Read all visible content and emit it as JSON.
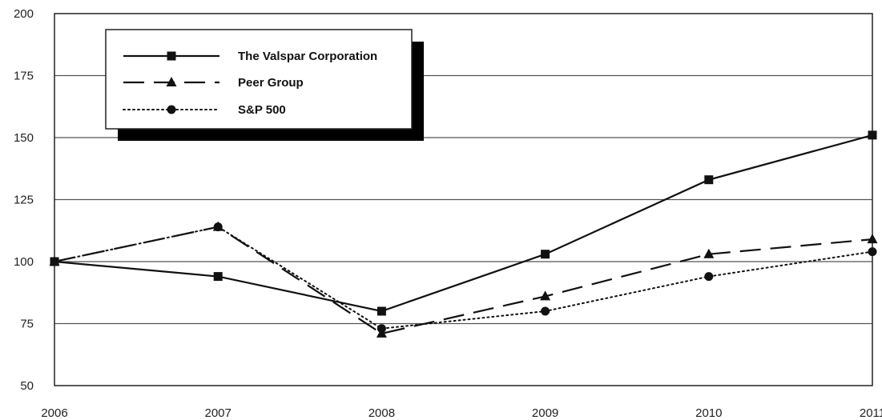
{
  "chart_data": {
    "type": "line",
    "categories": [
      "2006",
      "2007",
      "2008",
      "2009",
      "2010",
      "2011"
    ],
    "series": [
      {
        "name": "The Valspar Corporation",
        "style": "solid",
        "marker": "square",
        "values": [
          100,
          94,
          80,
          103,
          133,
          151
        ]
      },
      {
        "name": "Peer Group",
        "style": "dashed",
        "marker": "triangle",
        "values": [
          100,
          114,
          71,
          86,
          103,
          109
        ]
      },
      {
        "name": "S&P 500",
        "style": "dotted",
        "marker": "circle",
        "values": [
          100,
          114,
          73,
          80,
          94,
          104
        ]
      }
    ],
    "yticks": [
      "50",
      "75",
      "100",
      "125",
      "150",
      "175",
      "200"
    ],
    "ylim": [
      50,
      200
    ],
    "grid": "horizontal",
    "legend": "top-left",
    "colors": {
      "line": "#111111",
      "grid": "#555555",
      "shadow": "#000000"
    }
  }
}
